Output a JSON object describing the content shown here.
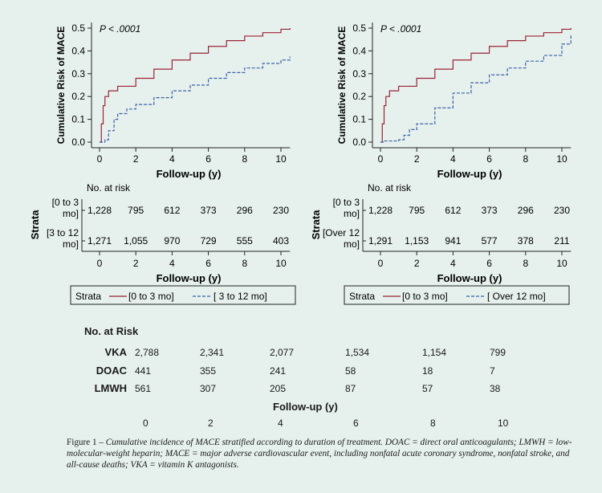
{
  "chart_data": [
    {
      "type": "line",
      "subtype": "cumulative-incidence",
      "annotation": "P < .0001",
      "ylabel": "Cumulative Risk of MACE",
      "xlabel": "Follow-up (y)",
      "xlim": [
        0,
        10.5
      ],
      "ylim": [
        0,
        0.5
      ],
      "xticks": [
        "0",
        "2",
        "4",
        "6",
        "8",
        "10"
      ],
      "yticks": [
        "0.0",
        "0.1",
        "0.2",
        "0.3",
        "0.4",
        "0.5"
      ],
      "series": [
        {
          "name": "[0 to 3 mo]",
          "color": "#9b2335",
          "style": "solid",
          "x": [
            0,
            0.1,
            0.2,
            0.3,
            0.5,
            1,
            2,
            3,
            4,
            5,
            6,
            7,
            8,
            9,
            10,
            10.5
          ],
          "y": [
            0,
            0.08,
            0.16,
            0.2,
            0.225,
            0.245,
            0.28,
            0.32,
            0.36,
            0.39,
            0.42,
            0.445,
            0.465,
            0.48,
            0.495,
            0.5
          ]
        },
        {
          "name": "[ 3 to 12 mo]",
          "color": "#3b5fa8",
          "style": "dashed",
          "x": [
            0,
            0.3,
            0.5,
            0.8,
            1,
            1.5,
            2,
            3,
            4,
            5,
            6,
            7,
            8,
            9,
            10,
            10.5
          ],
          "y": [
            0,
            0.01,
            0.05,
            0.1,
            0.125,
            0.145,
            0.165,
            0.195,
            0.225,
            0.25,
            0.28,
            0.305,
            0.325,
            0.345,
            0.36,
            0.375
          ]
        }
      ],
      "risk_table": {
        "title": "No. at risk",
        "strata_label": "Strata",
        "xlabel": "Follow-up (y)",
        "rows": [
          {
            "label": "[0 to 3 mo]",
            "values": [
              "1,228",
              "795",
              "612",
              "373",
              "296",
              "230"
            ]
          },
          {
            "label": "[3 to 12 mo]",
            "values": [
              "1,271",
              "1,055",
              "970",
              "729",
              "555",
              "403"
            ]
          }
        ]
      },
      "legend": {
        "title": "Strata",
        "entries": [
          "[0 to 3 mo]",
          "[ 3 to 12 mo]"
        ]
      }
    },
    {
      "type": "line",
      "subtype": "cumulative-incidence",
      "annotation": "P < .0001",
      "ylabel": "Cumulative Risk of MACE",
      "xlabel": "Follow-up (y)",
      "xlim": [
        0,
        10.5
      ],
      "ylim": [
        0,
        0.5
      ],
      "xticks": [
        "0",
        "2",
        "4",
        "6",
        "8",
        "10"
      ],
      "yticks": [
        "0.0",
        "0.1",
        "0.2",
        "0.3",
        "0.4",
        "0.5"
      ],
      "series": [
        {
          "name": "[0 to 3 mo]",
          "color": "#9b2335",
          "style": "solid",
          "x": [
            0,
            0.1,
            0.2,
            0.3,
            0.5,
            1,
            2,
            3,
            4,
            5,
            6,
            7,
            8,
            9,
            10,
            10.5
          ],
          "y": [
            0,
            0.08,
            0.16,
            0.2,
            0.225,
            0.245,
            0.28,
            0.32,
            0.36,
            0.39,
            0.42,
            0.445,
            0.465,
            0.48,
            0.495,
            0.5
          ]
        },
        {
          "name": "[ Over 12 mo]",
          "color": "#3b5fa8",
          "style": "dashed",
          "x": [
            0,
            0.2,
            1,
            1.3,
            1.6,
            2,
            3,
            4,
            5,
            6,
            7,
            8,
            9,
            10,
            10.5
          ],
          "y": [
            0,
            0.005,
            0.01,
            0.03,
            0.055,
            0.08,
            0.15,
            0.215,
            0.26,
            0.295,
            0.325,
            0.355,
            0.38,
            0.43,
            0.475
          ]
        }
      ],
      "risk_table": {
        "title": "No. at risk",
        "strata_label": "Strata",
        "xlabel": "Follow-up (y)",
        "rows": [
          {
            "label": "[0 to 3 mo]",
            "values": [
              "1,228",
              "795",
              "612",
              "373",
              "296",
              "230"
            ]
          },
          {
            "label": "[Over 12 mo]",
            "values": [
              "1,291",
              "1,153",
              "941",
              "577",
              "378",
              "211"
            ]
          }
        ]
      },
      "legend": {
        "title": "Strata",
        "entries": [
          "[0 to 3 mo]",
          "[ Over 12 mo]"
        ]
      }
    },
    {
      "type": "table",
      "title": "No. at Risk",
      "xlabel": "Follow-up (y)",
      "x": [
        "0",
        "2",
        "4",
        "6",
        "8",
        "10"
      ],
      "rows": [
        {
          "label": "VKA",
          "values": [
            "2,788",
            "2,341",
            "2,077",
            "1,534",
            "1,154",
            "799"
          ]
        },
        {
          "label": "DOAC",
          "values": [
            "441",
            "355",
            "241",
            "58",
            "18",
            "7"
          ]
        },
        {
          "label": "LMWH",
          "values": [
            "561",
            "307",
            "205",
            "87",
            "57",
            "38"
          ]
        }
      ]
    }
  ],
  "caption": {
    "prefix": "Figure 1 – ",
    "text": "Cumulative incidence of MACE stratified according to duration of treatment. DOAC = direct oral anticoagulants; LMWH = low-molecular-weight heparin; MACE = major adverse cardiovascular event, including nonfatal acute coronary syndrome, nonfatal stroke, and all-cause deaths; VKA = vitamin K antagonists."
  }
}
